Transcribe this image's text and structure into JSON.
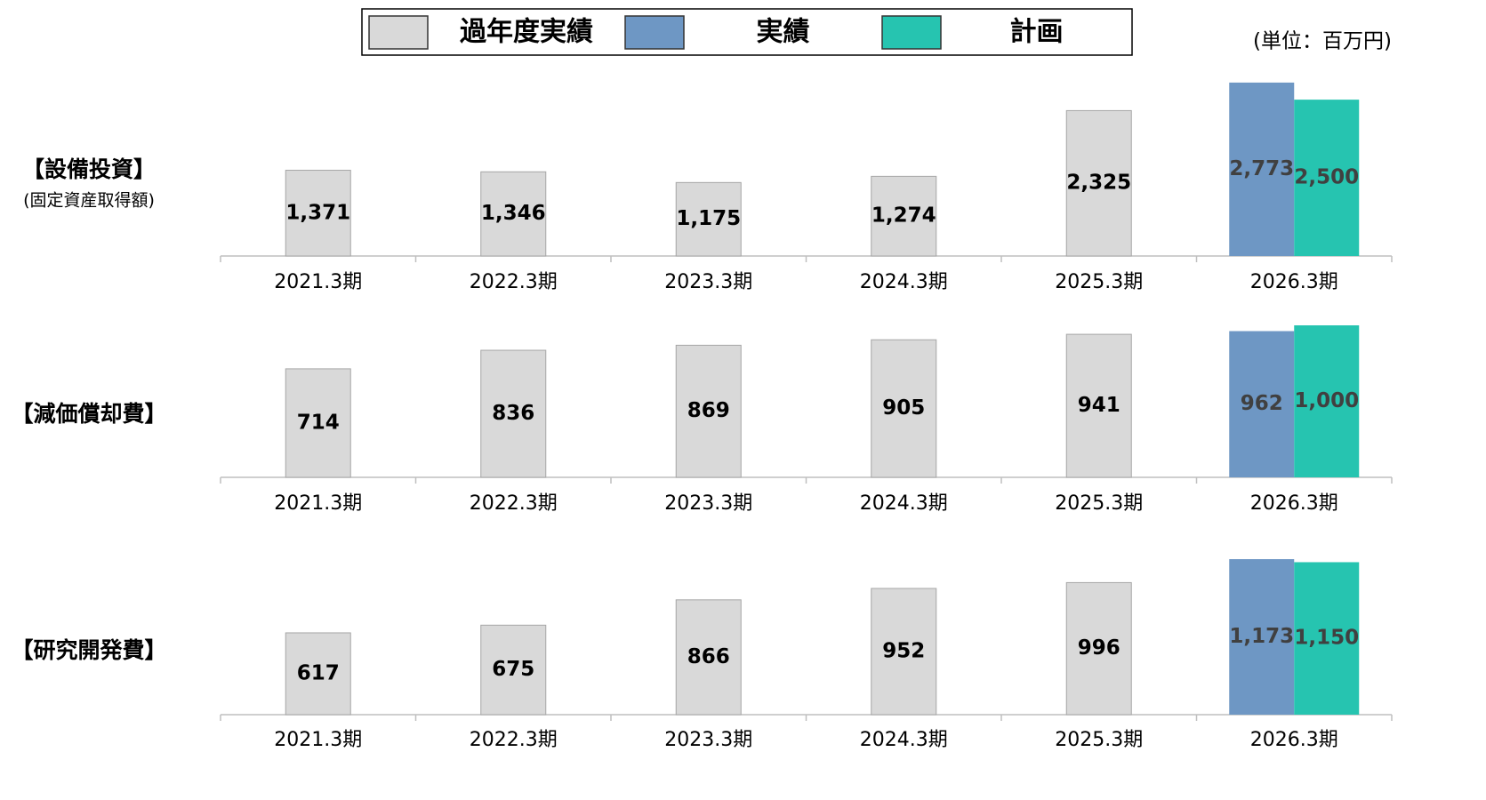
{
  "legend": {
    "items": [
      {
        "name": "過年度実績",
        "color": "#d9d9d9"
      },
      {
        "name": "実績",
        "color": "#6e97c4"
      },
      {
        "name": "計画",
        "color": "#26c4b0"
      }
    ]
  },
  "unit_label": "(単位：百万円)",
  "chart_data": [
    {
      "type": "bar",
      "title": "【設備投資】",
      "subtitle": "(固定資産取得額)",
      "categories": [
        "2021.3期",
        "2022.3期",
        "2023.3期",
        "2024.3期",
        "2025.3期",
        "2026.3期"
      ],
      "ylim": [
        0,
        2800
      ],
      "series": [
        {
          "values": [
            1371,
            1346,
            1175,
            1274,
            2325,
            null
          ],
          "value_labels": [
            "1,371",
            "1,346",
            "1,175",
            "1,274",
            "2,325",
            null
          ]
        },
        {
          "values": [
            null,
            null,
            null,
            null,
            null,
            2773
          ],
          "value_labels": [
            null,
            null,
            null,
            null,
            null,
            "2,773"
          ]
        },
        {
          "values": [
            null,
            null,
            null,
            null,
            null,
            2500
          ],
          "value_labels": [
            null,
            null,
            null,
            null,
            null,
            "2,500"
          ]
        }
      ]
    },
    {
      "type": "bar",
      "title": "【減価償却費】",
      "categories": [
        "2021.3期",
        "2022.3期",
        "2023.3期",
        "2024.3期",
        "2025.3期",
        "2026.3期"
      ],
      "ylim": [
        0,
        1000
      ],
      "series": [
        {
          "values": [
            714,
            836,
            869,
            905,
            941,
            null
          ]
        },
        {
          "values": [
            null,
            null,
            null,
            null,
            null,
            962
          ]
        },
        {
          "values": [
            null,
            null,
            null,
            null,
            null,
            1000
          ],
          "value_labels": [
            null,
            null,
            null,
            null,
            null,
            "1,000"
          ]
        }
      ]
    },
    {
      "type": "bar",
      "title": "【研究開発費】",
      "categories": [
        "2021.3期",
        "2022.3期",
        "2023.3期",
        "2024.3期",
        "2025.3期",
        "2026.3期"
      ],
      "ylim": [
        0,
        1200
      ],
      "series": [
        {
          "values": [
            617,
            675,
            866,
            952,
            996,
            null
          ]
        },
        {
          "values": [
            null,
            null,
            null,
            null,
            null,
            1173
          ],
          "value_labels": [
            null,
            null,
            null,
            null,
            null,
            "1,173"
          ]
        },
        {
          "values": [
            null,
            null,
            null,
            null,
            null,
            1150
          ],
          "value_labels": [
            null,
            null,
            null,
            null,
            null,
            "1,150"
          ]
        }
      ]
    }
  ]
}
